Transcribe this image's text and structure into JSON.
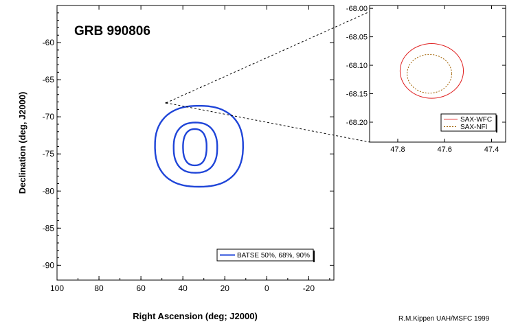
{
  "chart_data": [
    {
      "type": "contour",
      "title": "GRB 990806",
      "xlabel": "Right Ascension (deg; J2000)",
      "ylabel": "Declination (deg, J2000)",
      "xlim": [
        100,
        -32
      ],
      "ylim": [
        -92,
        -55
      ],
      "x_ticks": [
        "100",
        "80",
        "60",
        "40",
        "20",
        "0",
        "-20"
      ],
      "y_ticks": [
        "-60",
        "-65",
        "-70",
        "-75",
        "-80",
        "-85",
        "-90"
      ],
      "legend": {
        "position": "bottom-right",
        "label": "BATSE 50%, 68%, 90%"
      },
      "colors": {
        "contour": "#1f45d8"
      },
      "series": [
        {
          "level": "50%",
          "center": [
            34.3,
            -74.2
          ],
          "ra_half_width": 5.3,
          "dec_half_height": 2.6
        },
        {
          "level": "68%",
          "center": [
            34.0,
            -74.3
          ],
          "ra_half_width": 9.8,
          "dec_half_height": 3.6
        },
        {
          "level": "90%",
          "center": [
            32.3,
            -74.2
          ],
          "ra_half_width": 19.8,
          "dec_half_height": 5.8
        }
      ],
      "zoom_marker": [
        48.0,
        -68.12
      ]
    },
    {
      "type": "contour",
      "xlim": [
        47.92,
        47.34
      ],
      "ylim": [
        -68.235,
        -67.995
      ],
      "x_ticks": [
        "47.8",
        "47.6",
        "47.4"
      ],
      "y_ticks": [
        "-68.00",
        "-68.05",
        "-68.10",
        "-68.15",
        "-68.20"
      ],
      "legend": {
        "position": "bottom-right",
        "entries": [
          "SAX-WFC",
          "SAX-NFI"
        ]
      },
      "colors": {
        "wfc": "#e02020",
        "nfi": "#a06000"
      },
      "series": [
        {
          "name": "SAX-WFC",
          "center": [
            47.655,
            -68.11
          ],
          "ra_radius": 0.135,
          "dec_radius": 0.048
        },
        {
          "name": "SAX-NFI",
          "center": [
            47.665,
            -68.115
          ],
          "ra_radius": 0.095,
          "dec_radius": 0.034
        }
      ]
    }
  ],
  "credit": "R.M.Kippen UAH/MSFC 1999"
}
